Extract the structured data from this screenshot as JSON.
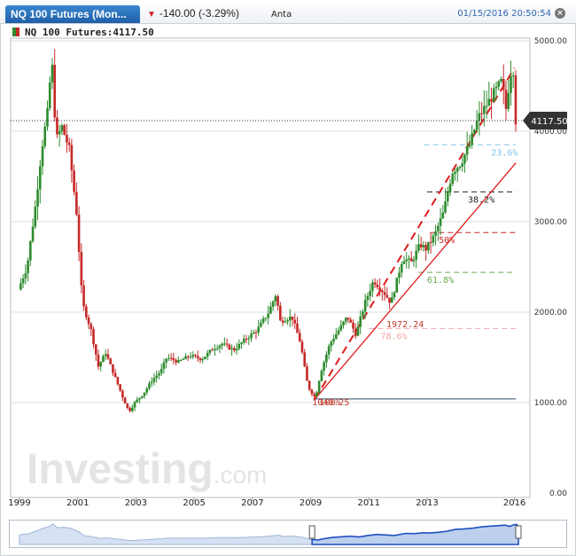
{
  "header": {
    "tab_title": "NQ 100 Futures (Mon...",
    "change_text": "-140.00 (-3.29%)",
    "panel_label": "Anta",
    "datetime": "01/15/2016 20:50:54",
    "close_label": "×"
  },
  "legend": {
    "label": "NQ 100 Futures:4117.50"
  },
  "price_tag": "4117.50",
  "watermark": {
    "main": "Investing",
    "suffix": ".com"
  },
  "colors": {
    "up": "#2e8b2e",
    "down": "#c62828",
    "accent": "#1f5fa8",
    "fib_line": "#e01b1b"
  },
  "chart_data": {
    "type": "candlestick",
    "title": "NQ 100 Futures",
    "ylim": [
      0,
      5000
    ],
    "xlim": [
      1999,
      2016.5
    ],
    "y_ticks": [
      "5000.00",
      "4000.00",
      "3000.00",
      "2000.00",
      "1000.00",
      "0.00"
    ],
    "x_ticks": [
      "1999",
      "2001",
      "2003",
      "2005",
      "2007",
      "2009",
      "2011",
      "2013",
      "2016"
    ],
    "grid": true,
    "last_price": 4117.5,
    "trend_points": [
      [
        1999.0,
        2250
      ],
      [
        1999.3,
        2500
      ],
      [
        1999.6,
        3200
      ],
      [
        1999.8,
        3800
      ],
      [
        2000.0,
        4200
      ],
      [
        2000.15,
        4800
      ],
      [
        2000.3,
        3900
      ],
      [
        2000.5,
        4050
      ],
      [
        2000.75,
        3800
      ],
      [
        2001.0,
        3100
      ],
      [
        2001.2,
        2100
      ],
      [
        2001.5,
        1800
      ],
      [
        2001.75,
        1400
      ],
      [
        2002.0,
        1550
      ],
      [
        2002.3,
        1300
      ],
      [
        2002.6,
        1050
      ],
      [
        2002.8,
        900
      ],
      [
        2003.0,
        1000
      ],
      [
        2003.3,
        1100
      ],
      [
        2003.6,
        1250
      ],
      [
        2003.9,
        1350
      ],
      [
        2004.1,
        1500
      ],
      [
        2004.5,
        1450
      ],
      [
        2004.9,
        1520
      ],
      [
        2005.3,
        1480
      ],
      [
        2005.7,
        1600
      ],
      [
        2006.0,
        1650
      ],
      [
        2006.4,
        1580
      ],
      [
        2006.8,
        1700
      ],
      [
        2007.2,
        1800
      ],
      [
        2007.6,
        2000
      ],
      [
        2007.85,
        2200
      ],
      [
        2008.0,
        1900
      ],
      [
        2008.4,
        1950
      ],
      [
        2008.7,
        1650
      ],
      [
        2008.9,
        1250
      ],
      [
        2009.0,
        1150
      ],
      [
        2009.2,
        1050
      ],
      [
        2009.4,
        1350
      ],
      [
        2009.7,
        1650
      ],
      [
        2010.0,
        1800
      ],
      [
        2010.3,
        1950
      ],
      [
        2010.6,
        1750
      ],
      [
        2010.9,
        2100
      ],
      [
        2011.2,
        2350
      ],
      [
        2011.6,
        2200
      ],
      [
        2011.8,
        2100
      ],
      [
        2012.2,
        2600
      ],
      [
        2012.5,
        2550
      ],
      [
        2012.8,
        2750
      ],
      [
        2013.0,
        2700
      ],
      [
        2013.3,
        2850
      ],
      [
        2013.6,
        3100
      ],
      [
        2013.9,
        3550
      ],
      [
        2014.2,
        3650
      ],
      [
        2014.5,
        3850
      ],
      [
        2014.8,
        4150
      ],
      [
        2015.1,
        4300
      ],
      [
        2015.4,
        4450
      ],
      [
        2015.6,
        4550
      ],
      [
        2015.75,
        4250
      ],
      [
        2015.9,
        4650
      ],
      [
        2016.0,
        4680
      ],
      [
        2016.05,
        4117.5
      ]
    ],
    "fibonacci": {
      "low_label": "1040.25",
      "low_value": 1040.25,
      "levels": [
        {
          "label": "23.6%",
          "value": 3850,
          "color": "#7fc6e8"
        },
        {
          "label": "38.2%",
          "value": 3330,
          "color": "#222222"
        },
        {
          "label": "50%",
          "value": 2880,
          "color": "#c62828"
        },
        {
          "label": "61.8%",
          "value": 2440,
          "color": "#6aa84f"
        },
        {
          "label": "78.6%",
          "value": 1820,
          "color": "#f4a6a6"
        },
        {
          "label": "100%",
          "value": 1040.25,
          "color": "#2b4e6e"
        }
      ],
      "mid_label": "1972.24",
      "mid_value": 1972.24
    }
  }
}
